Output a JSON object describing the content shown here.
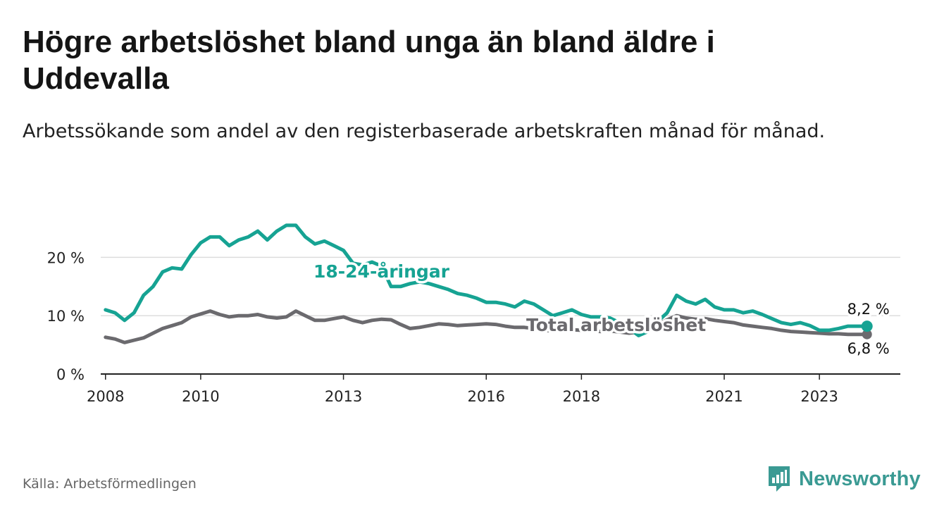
{
  "title": "Högre arbetslöshet bland unga än bland äldre i Uddevalla",
  "subtitle": "Arbetssökande som andel av den registerbaserade arbetskraften månad för månad.",
  "source": "Källa: Arbetsförmedlingen",
  "brand": "Newsworthy",
  "colors": {
    "youth": "#16a393",
    "total": "#6b6a6e",
    "grid": "#dddddd",
    "axis": "#222222",
    "brand": "#3a9a93"
  },
  "chart_data": {
    "type": "line",
    "title": "Högre arbetslöshet bland unga än bland äldre i Uddevalla",
    "xlabel": "",
    "ylabel": "",
    "ylim": [
      0,
      25
    ],
    "xlim": [
      2007.9,
      2024.7
    ],
    "y_ticks": [
      {
        "value": 0,
        "label": "0 %"
      },
      {
        "value": 10,
        "label": "10 %"
      },
      {
        "value": 20,
        "label": "20 %"
      }
    ],
    "x_ticks": [
      {
        "value": 2008,
        "label": "2008"
      },
      {
        "value": 2010,
        "label": "2010"
      },
      {
        "value": 2013,
        "label": "2013"
      },
      {
        "value": 2016,
        "label": "2016"
      },
      {
        "value": 2018,
        "label": "2018"
      },
      {
        "value": 2021,
        "label": "2021"
      },
      {
        "value": 2023,
        "label": "2023"
      }
    ],
    "series": [
      {
        "name": "18-24-åringar",
        "label": "18-24-åringar",
        "end_label": "8,2 %",
        "x": [
          2008.0,
          2008.2,
          2008.4,
          2008.6,
          2008.8,
          2009.0,
          2009.2,
          2009.4,
          2009.6,
          2009.8,
          2010.0,
          2010.2,
          2010.4,
          2010.6,
          2010.8,
          2011.0,
          2011.2,
          2011.4,
          2011.6,
          2011.8,
          2012.0,
          2012.2,
          2012.4,
          2012.6,
          2012.8,
          2013.0,
          2013.2,
          2013.4,
          2013.6,
          2013.8,
          2014.0,
          2014.2,
          2014.4,
          2014.6,
          2014.8,
          2015.0,
          2015.2,
          2015.4,
          2015.6,
          2015.8,
          2016.0,
          2016.2,
          2016.4,
          2016.6,
          2016.8,
          2017.0,
          2017.2,
          2017.4,
          2017.6,
          2017.8,
          2018.0,
          2018.2,
          2018.4,
          2018.6,
          2018.8,
          2019.0,
          2019.2,
          2019.4,
          2019.6,
          2019.8,
          2020.0,
          2020.2,
          2020.4,
          2020.6,
          2020.8,
          2021.0,
          2021.2,
          2021.4,
          2021.6,
          2021.8,
          2022.0,
          2022.2,
          2022.4,
          2022.6,
          2022.8,
          2023.0,
          2023.2,
          2023.4,
          2023.6,
          2023.8,
          2024.0
        ],
        "values": [
          11.0,
          10.5,
          9.2,
          10.5,
          13.5,
          15.0,
          17.5,
          18.2,
          18.0,
          20.5,
          22.5,
          23.5,
          23.5,
          22.0,
          23.0,
          23.5,
          24.5,
          23.0,
          24.5,
          25.5,
          25.5,
          23.5,
          22.3,
          22.8,
          22.0,
          21.2,
          19.0,
          18.7,
          19.2,
          18.5,
          15.0,
          15.0,
          15.5,
          15.8,
          15.5,
          15.0,
          14.5,
          13.8,
          13.5,
          13.0,
          12.3,
          12.3,
          12.0,
          11.5,
          12.5,
          12.0,
          11.0,
          10.0,
          10.5,
          11.0,
          10.2,
          9.8,
          9.8,
          9.6,
          8.8,
          7.8,
          6.6,
          7.3,
          9.0,
          10.5,
          13.5,
          12.5,
          12.0,
          12.8,
          11.5,
          11.0,
          11.0,
          10.5,
          10.8,
          10.2,
          9.5,
          8.8,
          8.5,
          8.8,
          8.3,
          7.5,
          7.5,
          7.8,
          8.2,
          8.2,
          8.2
        ]
      },
      {
        "name": "Total arbetslöshet",
        "label": "Total arbetslöshet",
        "end_label": "6,8 %",
        "x": [
          2008.0,
          2008.2,
          2008.4,
          2008.6,
          2008.8,
          2009.0,
          2009.2,
          2009.4,
          2009.6,
          2009.8,
          2010.0,
          2010.2,
          2010.4,
          2010.6,
          2010.8,
          2011.0,
          2011.2,
          2011.4,
          2011.6,
          2011.8,
          2012.0,
          2012.2,
          2012.4,
          2012.6,
          2012.8,
          2013.0,
          2013.2,
          2013.4,
          2013.6,
          2013.8,
          2014.0,
          2014.2,
          2014.4,
          2014.6,
          2014.8,
          2015.0,
          2015.2,
          2015.4,
          2015.6,
          2015.8,
          2016.0,
          2016.2,
          2016.4,
          2016.6,
          2016.8,
          2017.0,
          2017.2,
          2017.4,
          2017.6,
          2017.8,
          2018.0,
          2018.2,
          2018.4,
          2018.6,
          2018.8,
          2019.0,
          2019.2,
          2019.4,
          2019.6,
          2019.8,
          2020.0,
          2020.2,
          2020.4,
          2020.6,
          2020.8,
          2021.0,
          2021.2,
          2021.4,
          2021.6,
          2021.8,
          2022.0,
          2022.2,
          2022.4,
          2022.6,
          2022.8,
          2023.0,
          2023.2,
          2023.4,
          2023.6,
          2023.8,
          2024.0
        ],
        "values": [
          6.3,
          6.0,
          5.4,
          5.8,
          6.2,
          7.0,
          7.8,
          8.3,
          8.8,
          9.8,
          10.3,
          10.8,
          10.2,
          9.8,
          10.0,
          10.0,
          10.2,
          9.8,
          9.6,
          9.8,
          10.8,
          10.0,
          9.2,
          9.2,
          9.5,
          9.8,
          9.2,
          8.8,
          9.2,
          9.4,
          9.3,
          8.5,
          7.8,
          8.0,
          8.3,
          8.6,
          8.5,
          8.3,
          8.4,
          8.5,
          8.6,
          8.5,
          8.2,
          8.0,
          8.0,
          7.8,
          7.5,
          7.4,
          7.5,
          7.6,
          7.5,
          7.4,
          7.3,
          7.4,
          7.2,
          7.0,
          7.2,
          7.6,
          8.5,
          9.3,
          10.0,
          9.6,
          9.4,
          9.5,
          9.2,
          9.0,
          8.8,
          8.4,
          8.2,
          8.0,
          7.8,
          7.5,
          7.3,
          7.2,
          7.1,
          7.0,
          6.9,
          6.9,
          6.8,
          6.8,
          6.8
        ]
      }
    ]
  }
}
